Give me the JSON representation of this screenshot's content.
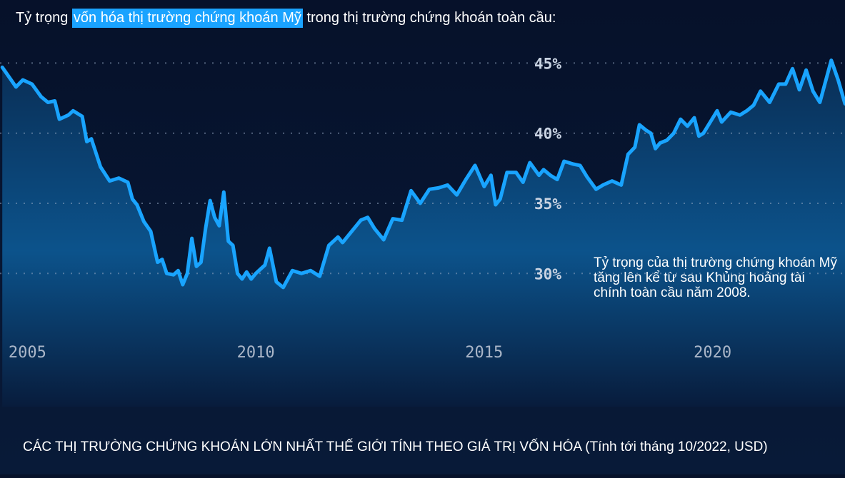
{
  "title": {
    "prefix": "Tỷ trọng ",
    "highlight": "vốn hóa thị trường chứng khoán Mỹ",
    "suffix": " trong thị trường chứng khoán toàn cầu:"
  },
  "annotation": "Tỷ trọng của thị trường chứng khoán Mỹ tăng lên kể từ sau Khủng hoảng tài chính toàn cầu năm 2008.",
  "footer_title": "CÁC THỊ TRƯỜNG CHỨNG KHOÁN LỚN NHẤT THẾ GIỚI TÍNH THEO GIÁ TRỊ VỐN HÓA (Tính tới tháng 10/2022, USD)",
  "colors": {
    "background": "#07122a",
    "line": "#19a4ff",
    "area_bottom": "#0c5a8f",
    "highlight": "#1aa3ff"
  },
  "chart_data": {
    "type": "area",
    "title": "",
    "xlabel": "",
    "ylabel": "",
    "xlim": [
      2004.4,
      2022.9
    ],
    "ylim": [
      20.5,
      49.5
    ],
    "y_ticks": [
      30,
      35,
      40,
      45
    ],
    "y_tick_labels": [
      "30%",
      "35%",
      "40%",
      "45%"
    ],
    "x_ticks": [
      2005,
      2010,
      2015,
      2020
    ],
    "x_tick_labels": [
      "2005",
      "2010",
      "2015",
      "2020"
    ],
    "grid": "dotted horizontal at y ticks",
    "series": [
      {
        "x": [
          2004.45,
          2004.6,
          2004.75,
          2004.9,
          2005.1,
          2005.3,
          2005.45,
          2005.6,
          2005.7,
          2005.9,
          2006.0,
          2006.2,
          2006.3,
          2006.4,
          2006.6,
          2006.8,
          2007.0,
          2007.2,
          2007.3,
          2007.4,
          2007.55,
          2007.7,
          2007.85,
          2007.95,
          2008.05,
          2008.2,
          2008.3,
          2008.4,
          2008.5,
          2008.6,
          2008.7,
          2008.8,
          2008.9,
          2009.0,
          2009.1,
          2009.2,
          2009.3,
          2009.4,
          2009.5,
          2009.6,
          2009.7,
          2009.8,
          2009.9,
          2010.0,
          2010.1,
          2010.2,
          2010.3,
          2010.45,
          2010.6,
          2010.8,
          2011.0,
          2011.2,
          2011.4,
          2011.6,
          2011.8,
          2011.9,
          2012.05,
          2012.3,
          2012.45,
          2012.6,
          2012.8,
          2013.0,
          2013.2,
          2013.4,
          2013.6,
          2013.8,
          2014.0,
          2014.2,
          2014.4,
          2014.6,
          2014.8,
          2015.0,
          2015.15,
          2015.25,
          2015.35,
          2015.5,
          2015.7,
          2015.85,
          2016.0,
          2016.2,
          2016.3,
          2016.45,
          2016.6,
          2016.75,
          2016.95,
          2017.1,
          2017.25,
          2017.45,
          2017.6,
          2017.8,
          2018.0,
          2018.15,
          2018.3,
          2018.4,
          2018.55,
          2018.65,
          2018.75,
          2018.85,
          2019.0,
          2019.15,
          2019.3,
          2019.45,
          2019.6,
          2019.7,
          2019.8,
          2019.95,
          2020.1,
          2020.2,
          2020.4,
          2020.6,
          2020.75,
          2020.9,
          2021.05,
          2021.25,
          2021.45,
          2021.6,
          2021.75,
          2021.9,
          2022.05,
          2022.2,
          2022.35,
          2022.45,
          2022.6,
          2022.75,
          2022.9
        ],
        "y": [
          44.7,
          44.0,
          43.3,
          43.8,
          43.5,
          42.6,
          42.2,
          42.3,
          41.0,
          41.3,
          41.6,
          41.2,
          39.4,
          39.6,
          37.6,
          36.6,
          36.8,
          36.5,
          35.3,
          34.9,
          33.7,
          33.0,
          30.8,
          31.0,
          30.0,
          29.9,
          30.2,
          29.2,
          30.0,
          32.5,
          30.5,
          30.8,
          33.2,
          35.2,
          34.0,
          33.4,
          35.8,
          32.3,
          32.0,
          30.0,
          29.6,
          30.1,
          29.6,
          30.0,
          30.3,
          30.6,
          31.8,
          29.4,
          29.0,
          30.2,
          30.0,
          30.2,
          29.8,
          32.0,
          32.6,
          32.2,
          32.8,
          33.8,
          34.0,
          33.2,
          32.4,
          33.9,
          33.8,
          35.9,
          35.0,
          36.0,
          36.1,
          36.3,
          35.6,
          36.7,
          37.7,
          36.2,
          37.0,
          34.9,
          35.3,
          37.2,
          37.2,
          36.5,
          37.9,
          37.0,
          37.4,
          37.0,
          36.7,
          38.0,
          37.8,
          37.7,
          36.9,
          36.0,
          36.3,
          36.6,
          36.3,
          38.5,
          39.0,
          40.6,
          40.2,
          40.0,
          38.9,
          39.3,
          39.5,
          40.0,
          41.0,
          40.5,
          41.1,
          39.8,
          40.0,
          40.8,
          41.6,
          40.8,
          41.5,
          41.3,
          41.6,
          42.0,
          43.0,
          42.2,
          43.5,
          43.5,
          44.6,
          43.1,
          44.5,
          43.0,
          42.2,
          43.4,
          45.2,
          43.8,
          42.1
        ]
      }
    ]
  }
}
